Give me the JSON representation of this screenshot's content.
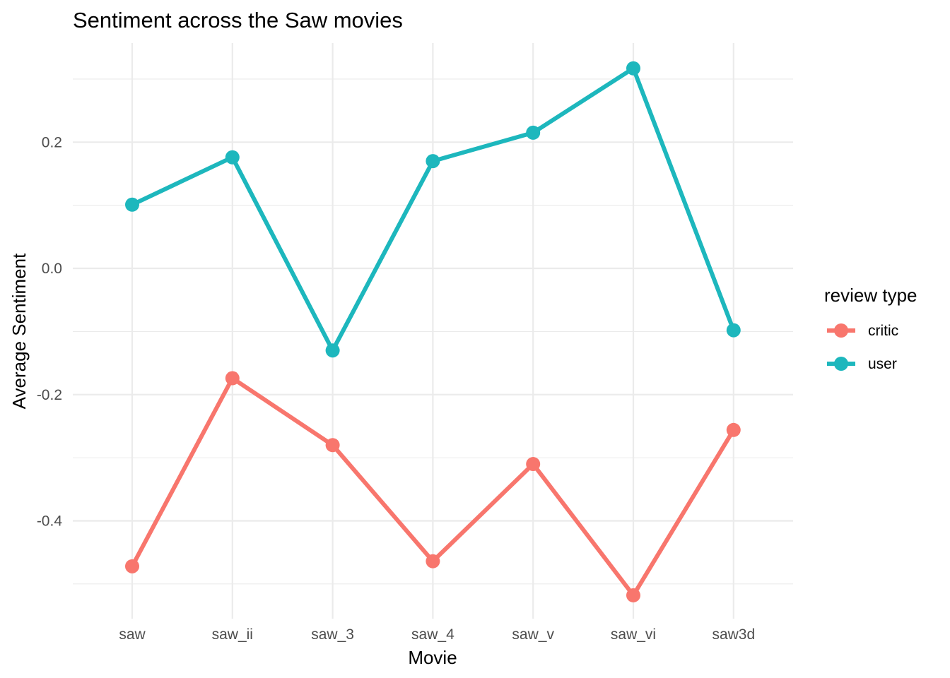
{
  "chart_data": {
    "type": "line",
    "title": "Sentiment across the Saw movies",
    "xlabel": "Movie",
    "ylabel": "Average Sentiment",
    "categories": [
      "saw",
      "saw_ii",
      "saw_3",
      "saw_4",
      "saw_v",
      "saw_vi",
      "saw3d"
    ],
    "yticks": [
      -0.4,
      -0.2,
      0.0,
      0.2
    ],
    "ytick_labels": [
      "-0.4",
      "-0.2",
      "0.0",
      "0.2"
    ],
    "ylim": [
      -0.555,
      0.357
    ],
    "grid": true,
    "legend": {
      "title": "review type",
      "position": "right"
    },
    "series": [
      {
        "name": "critic",
        "color": "#f8766d",
        "values": [
          -0.472,
          -0.174,
          -0.28,
          -0.464,
          -0.31,
          -0.518,
          -0.256
        ]
      },
      {
        "name": "user",
        "color": "#1db7bd",
        "values": [
          0.101,
          0.176,
          -0.13,
          0.17,
          0.215,
          0.317,
          -0.098
        ]
      }
    ]
  }
}
